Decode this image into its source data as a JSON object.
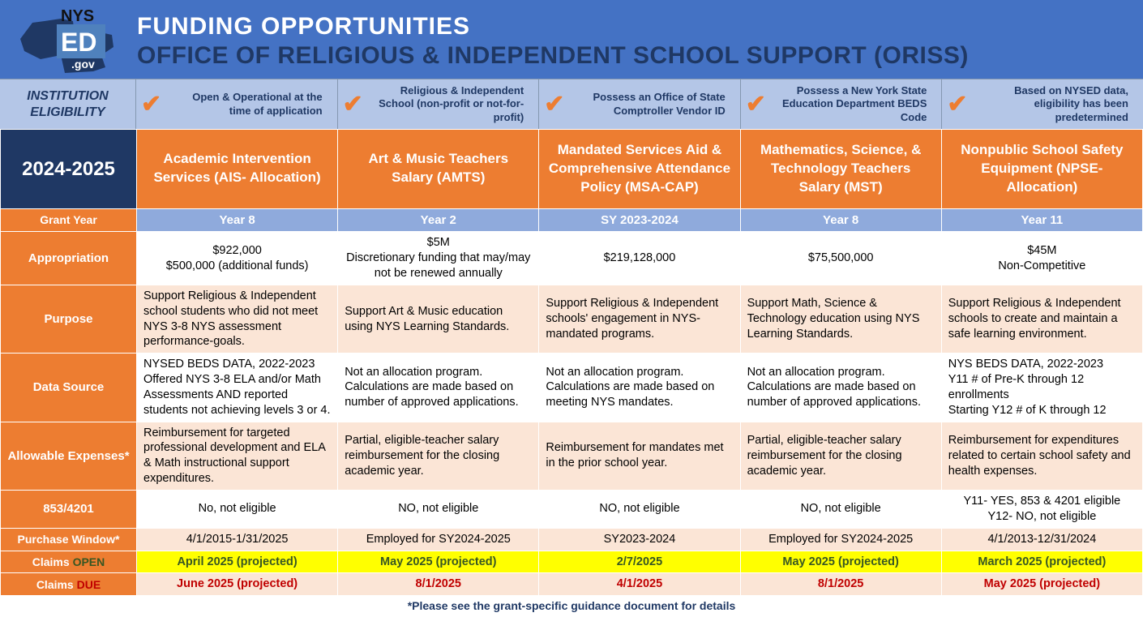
{
  "header": {
    "logo_top": "NYS",
    "logo_mid": "ED",
    "logo_bottom": ".gov",
    "title1": "FUNDING OPPORTUNITIES",
    "title2": "OFFICE OF RELIGIOUS & INDEPENDENT SCHOOL SUPPORT (ORISS)"
  },
  "eligibility": {
    "label_line1": "INSTITUTION",
    "label_line2": "ELIGIBILITY",
    "items": [
      "Open & Operational at the time of application",
      "Religious & Independent School (non-profit or not-for-profit)",
      "Possess an Office of State Comptroller Vendor ID",
      "Possess a New York State Education Department BEDS Code",
      "Based on NYSED data, eligibility has been predetermined"
    ]
  },
  "period": "2024-2025",
  "programs": [
    "Academic Intervention Services (AIS- Allocation)",
    "Art & Music Teachers Salary (AMTS)",
    "Mandated Services Aid & Comprehensive Attendance Policy (MSA-CAP)",
    "Mathematics, Science, & Technology Teachers Salary (MST)",
    "Nonpublic School Safety Equipment (NPSE-Allocation)"
  ],
  "row_labels": {
    "grant_year": "Grant Year",
    "appropriation": "Appropriation",
    "purpose": "Purpose",
    "data_source": "Data Source",
    "allowable": "Allowable Expenses*",
    "853": "853/4201",
    "purchase": "Purchase Window*",
    "claims_open_prefix": "Claims ",
    "claims_open_word": "OPEN",
    "claims_due_prefix": "Claims ",
    "claims_due_word": "DUE"
  },
  "grant_year": [
    "Year 8",
    "Year 2",
    "SY 2023-2024",
    "Year 8",
    "Year 11"
  ],
  "appropriation": [
    "$922,000\n$500,000 (additional funds)",
    "$5M\nDiscretionary funding that may/may not be renewed annually",
    "$219,128,000",
    "$75,500,000",
    "$45M\nNon-Competitive"
  ],
  "purpose": [
    "Support Religious & Independent school students who did not meet NYS 3-8 NYS assessment performance-goals.",
    "Support Art & Music education using NYS Learning Standards.",
    "Support Religious & Independent schools' engagement in NYS-mandated programs.",
    "Support Math, Science & Technology education using NYS Learning Standards.",
    "Support Religious & Independent schools to create and maintain a safe learning environment."
  ],
  "data_source": [
    "NYSED BEDS DATA, 2022-2023\nOffered NYS 3-8 ELA and/or Math Assessments AND reported students not achieving levels 3 or 4.",
    "Not an allocation program. Calculations are made based on number of approved applications.",
    "Not an allocation program. Calculations are made based on meeting NYS mandates.",
    "Not an allocation program. Calculations are made based on number of approved applications.",
    "NYS BEDS DATA, 2022-2023\nY11 # of Pre-K through 12 enrollments\nStarting Y12 # of K through 12"
  ],
  "allowable": [
    "Reimbursement for targeted professional development and ELA & Math instructional support expenditures.",
    "Partial, eligible-teacher salary reimbursement for the closing academic year.",
    "Reimbursement for mandates met in the prior school year.",
    "Partial, eligible-teacher salary reimbursement for the closing academic year.",
    "Reimbursement for expenditures related to certain school safety and health expenses."
  ],
  "853": [
    "No, not eligible",
    "NO, not eligible",
    "NO, not eligible",
    "NO, not eligible",
    "Y11- YES, 853 & 4201 eligible\nY12- NO, not eligible"
  ],
  "purchase": [
    "4/1/2015-1/31/2025",
    "Employed for SY2024-2025",
    "SY2023-2024",
    "Employed for SY2024-2025",
    "4/1/2013-12/31/2024"
  ],
  "claims_open": [
    "April 2025  (projected)",
    "May 2025 (projected)",
    "2/7/2025",
    "May 2025 (projected)",
    "March 2025 (projected)"
  ],
  "claims_due": [
    "June 2025 (projected)",
    "8/1/2025",
    "4/1/2025",
    "8/1/2025",
    "May 2025 (projected)"
  ],
  "footnote": "*Please see the grant-specific guidance document for details",
  "colors": {
    "header_bg": "#4472c4",
    "dark_blue": "#1f3864",
    "light_blue": "#b4c6e7",
    "mid_blue": "#8faadc",
    "orange": "#ed7d31",
    "peach": "#fbe5d6",
    "yellow": "#ffff00",
    "green_text": "#375623",
    "red_text": "#c00000"
  }
}
